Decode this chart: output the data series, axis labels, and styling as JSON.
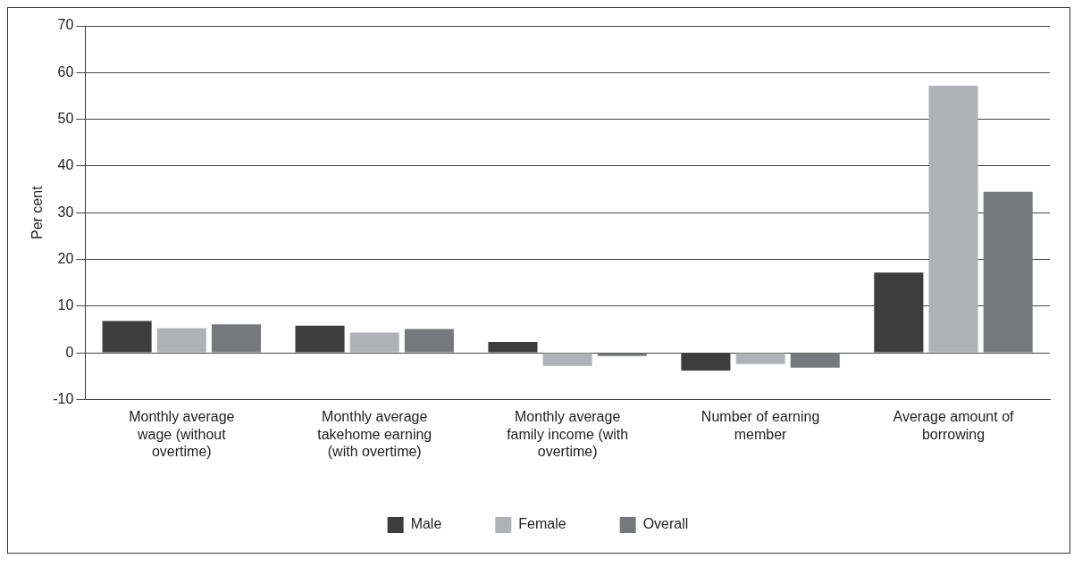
{
  "chart_data": {
    "type": "bar",
    "ylabel": "Per cent",
    "categories": [
      "Monthly average wage (without overtime)",
      "Monthly average takehome earning (with overtime)",
      "Monthly average family income (with overtime)",
      "Number of earning member",
      "Average amount of borrowing"
    ],
    "series": [
      {
        "name": "Male",
        "color": "#3d3d3d",
        "values": [
          6.8,
          5.8,
          2.3,
          -3.8,
          17.2
        ]
      },
      {
        "name": "Female",
        "color": "#b1b2b5",
        "values": [
          5.3,
          4.3,
          -2.8,
          -2.4,
          57.2
        ]
      },
      {
        "name": "Overall",
        "color": "#77787b",
        "values": [
          6.1,
          5.1,
          -0.7,
          -3.2,
          34.5
        ]
      }
    ],
    "ylim": [
      -10,
      70
    ],
    "yticks": [
      -10,
      0,
      10,
      20,
      30,
      40,
      50,
      60,
      70
    ],
    "grid": "y",
    "legend": "bottom"
  }
}
